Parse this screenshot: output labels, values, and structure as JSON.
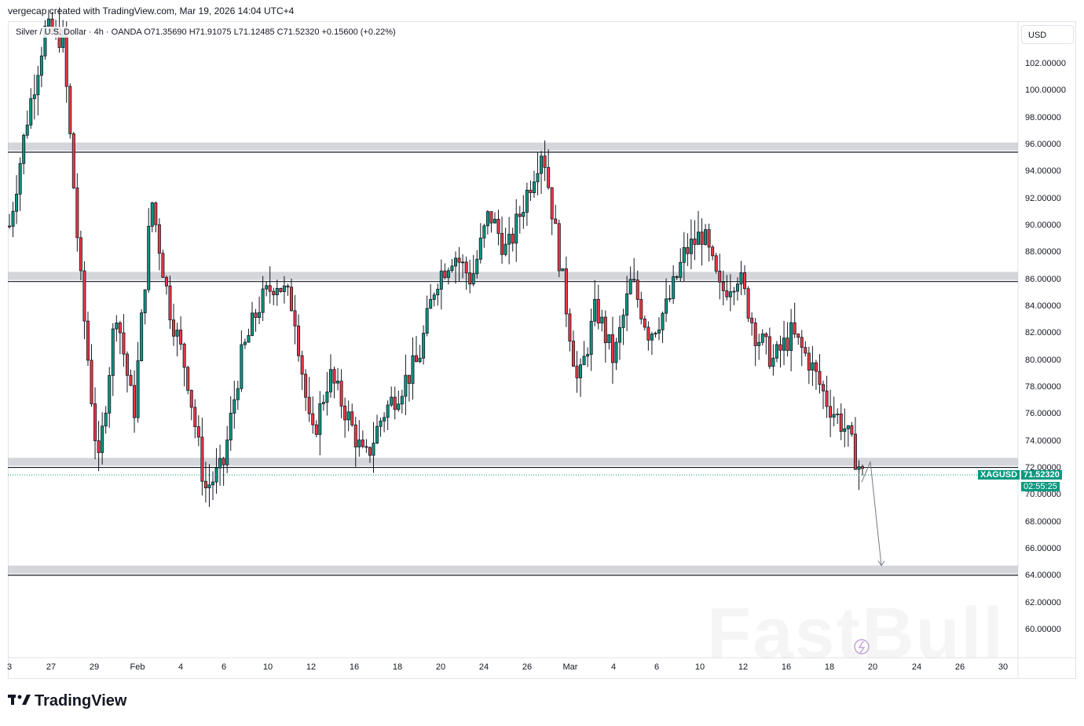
{
  "header": {
    "text": "vergecap created with TradingView.com, Mar 19, 2026 14:04 UTC+4"
  },
  "legend": {
    "text": "Silver / U.S. Dollar · 4h · OANDA   O71.35690  H71.91075  L71.12485  C71.52320  +0.15600 (+0.22%)"
  },
  "currency": "USD",
  "brand": "TradingView",
  "watermark": "FastBull",
  "colors": {
    "up": "#089981",
    "down": "#f23645",
    "candle": "#131722",
    "zone": "#b2b5be",
    "tag": "#089981"
  },
  "chart_data": {
    "type": "candlestick",
    "symbol": "XAGUSD",
    "title": "Silver / U.S. Dollar · 4h · OANDA",
    "ylim": [
      58,
      104
    ],
    "y_ticks": [
      "102.00000",
      "100.00000",
      "98.00000",
      "96.00000",
      "94.00000",
      "92.00000",
      "90.00000",
      "88.00000",
      "86.00000",
      "84.00000",
      "82.00000",
      "80.00000",
      "78.00000",
      "76.00000",
      "74.00000",
      "72.00000",
      "70.00000",
      "68.00000",
      "66.00000",
      "64.00000",
      "62.00000",
      "60.00000"
    ],
    "x_ticks": [
      "3",
      "27",
      "29",
      "Feb",
      "4",
      "6",
      "10",
      "12",
      "16",
      "18",
      "20",
      "24",
      "26",
      "Mar",
      "4",
      "6",
      "10",
      "12",
      "16",
      "18",
      "20",
      "24",
      "26",
      "30"
    ],
    "last_price": "71.52320",
    "countdown": "02:55:25",
    "zones": [
      {
        "low": 95.6,
        "high": 96.2
      },
      {
        "low": 86.0,
        "high": 86.6
      },
      {
        "low": 72.2,
        "high": 72.8
      },
      {
        "low": 64.2,
        "high": 64.8
      }
    ],
    "projection": [
      [
        71.0,
        70.0
      ],
      [
        72.5,
        72.5
      ],
      [
        64.8,
        64.8
      ]
    ],
    "price_path": [
      90.0,
      98.0,
      104.5,
      104.0,
      86.0,
      72.0,
      84.0,
      76.0,
      92.0,
      84.0,
      79.0,
      70.5,
      72.0,
      80.0,
      84.0,
      86.0,
      84.0,
      74.0,
      79.0,
      76.0,
      72.5,
      76.0,
      78.0,
      80.0,
      86.0,
      88.0,
      86.0,
      91.0,
      88.0,
      92.0,
      96.0,
      87.0,
      78.0,
      84.0,
      80.0,
      86.0,
      82.0,
      84.0,
      88.0,
      89.5,
      85.0,
      86.5,
      82.0,
      80.0,
      82.0,
      80.0,
      77.0,
      75.0,
      71.5
    ]
  }
}
